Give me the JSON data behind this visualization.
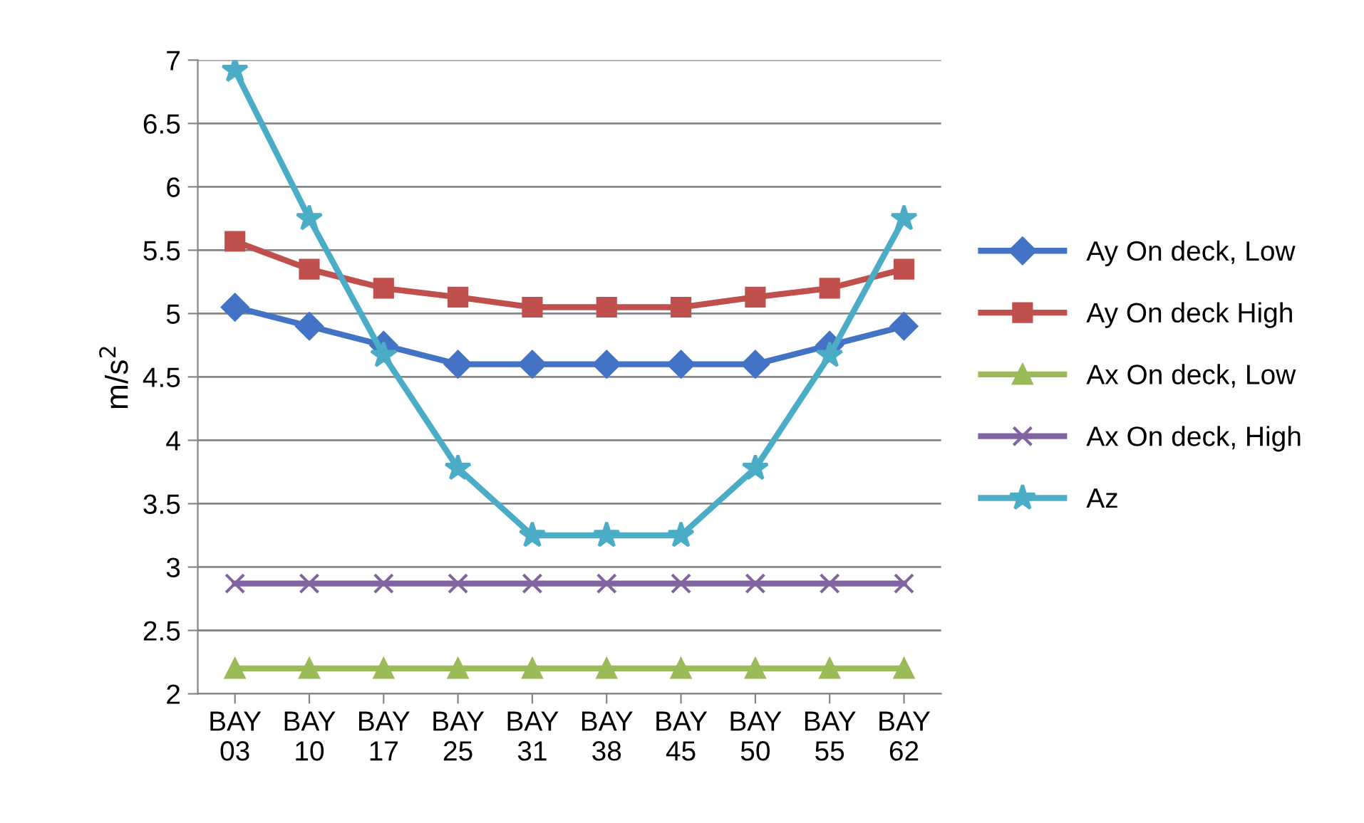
{
  "chart_data": {
    "type": "line",
    "ylabel": "m/s$^{2}$",
    "categories": [
      "BAY\n03",
      "BAY\n10",
      "BAY\n17",
      "BAY\n25",
      "BAY\n31",
      "BAY\n38",
      "BAY\n45",
      "BAY\n50",
      "BAY\n55",
      "BAY\n62"
    ],
    "series": [
      {
        "name": "Ay On deck, Low",
        "color": "#4472c4",
        "marker": "diamond",
        "values": [
          5.05,
          4.9,
          4.75,
          4.6,
          4.6,
          4.6,
          4.6,
          4.6,
          4.75,
          4.9
        ]
      },
      {
        "name": "Ay On deck High",
        "color": "#c0504d",
        "marker": "square",
        "values": [
          5.57,
          5.35,
          5.2,
          5.13,
          5.05,
          5.05,
          5.05,
          5.13,
          5.2,
          5.35
        ]
      },
      {
        "name": "Ax On deck, Low",
        "color": "#9bbb59",
        "marker": "triangle",
        "values": [
          2.2,
          2.2,
          2.2,
          2.2,
          2.2,
          2.2,
          2.2,
          2.2,
          2.2,
          2.2
        ]
      },
      {
        "name": "Ax On deck, High",
        "color": "#8064a2",
        "marker": "cross",
        "values": [
          2.87,
          2.87,
          2.87,
          2.87,
          2.87,
          2.87,
          2.87,
          2.87,
          2.87,
          2.87
        ]
      },
      {
        "name": "Az",
        "color": "#4bacc6",
        "marker": "star",
        "values": [
          6.92,
          5.75,
          4.67,
          3.78,
          3.25,
          3.25,
          3.25,
          3.78,
          4.67,
          5.75
        ]
      }
    ],
    "ylim": [
      2,
      7
    ],
    "yticks": [
      2,
      2.5,
      3,
      3.5,
      4,
      4.5,
      5,
      5.5,
      6,
      6.5,
      7
    ],
    "grid": "y",
    "legend": "right",
    "line_style": "solid"
  }
}
